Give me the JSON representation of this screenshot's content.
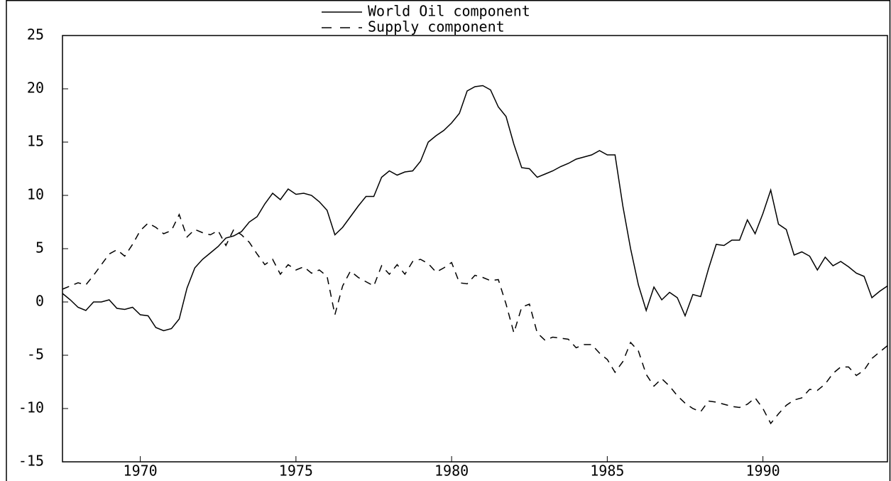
{
  "chart_data": {
    "type": "line",
    "x": [
      1967.5,
      1967.75,
      1968,
      1968.25,
      1968.5,
      1968.75,
      1969,
      1969.25,
      1969.5,
      1969.75,
      1970,
      1970.25,
      1970.5,
      1970.75,
      1971,
      1971.25,
      1971.5,
      1971.75,
      1972,
      1972.25,
      1972.5,
      1972.75,
      1973,
      1973.25,
      1973.5,
      1973.75,
      1974,
      1974.25,
      1974.5,
      1974.75,
      1975,
      1975.25,
      1975.5,
      1975.75,
      1976,
      1976.25,
      1976.5,
      1976.75,
      1977,
      1977.25,
      1977.5,
      1977.75,
      1978,
      1978.25,
      1978.5,
      1978.75,
      1979,
      1979.25,
      1979.5,
      1979.75,
      1980,
      1980.25,
      1980.5,
      1980.75,
      1981,
      1981.25,
      1981.5,
      1981.75,
      1982,
      1982.25,
      1982.5,
      1982.75,
      1983,
      1983.25,
      1983.5,
      1983.75,
      1984,
      1984.25,
      1984.5,
      1984.75,
      1985,
      1985.25,
      1985.5,
      1985.75,
      1986,
      1986.25,
      1986.5,
      1986.75,
      1987,
      1987.25,
      1987.5,
      1987.75,
      1988,
      1988.25,
      1988.5,
      1988.75,
      1989,
      1989.25,
      1989.5,
      1989.75,
      1990,
      1990.25,
      1990.5,
      1990.75,
      1991,
      1991.25,
      1991.5,
      1991.75,
      1992,
      1992.25,
      1992.5,
      1992.75,
      1993,
      1993.25,
      1993.5,
      1993.75,
      1994
    ],
    "series": [
      {
        "name": "World Oil component",
        "color": "#000000",
        "dash": false,
        "values": [
          0.8,
          0.2,
          -0.5,
          -0.8,
          0.0,
          0.0,
          0.2,
          -0.6,
          -0.7,
          -0.5,
          -1.2,
          -1.3,
          -2.4,
          -2.7,
          -2.5,
          -1.6,
          1.3,
          3.2,
          4.0,
          4.6,
          5.2,
          6.0,
          6.2,
          6.6,
          7.5,
          8.0,
          9.2,
          10.2,
          9.6,
          10.6,
          10.1,
          10.2,
          10.0,
          9.4,
          8.6,
          6.3,
          7.0,
          8.0,
          9.0,
          9.9,
          9.9,
          11.7,
          12.3,
          11.9,
          12.2,
          12.3,
          13.2,
          15.0,
          15.6,
          16.1,
          16.8,
          17.7,
          19.8,
          20.2,
          20.3,
          19.9,
          18.3,
          17.4,
          14.8,
          12.6,
          12.5,
          11.7,
          12.0,
          12.3,
          12.7,
          13.0,
          13.4,
          13.6,
          13.8,
          14.2,
          13.8,
          13.8,
          9.0,
          5.0,
          1.6,
          -0.8,
          1.4,
          0.2,
          0.9,
          0.4,
          -1.3,
          0.7,
          0.5,
          3.1,
          5.4,
          5.3,
          5.8,
          5.8,
          7.7,
          6.4,
          8.3,
          10.5,
          7.3,
          6.8,
          4.4,
          4.7,
          4.3,
          3.0,
          4.2,
          3.4,
          3.8,
          3.3,
          2.7,
          2.4,
          0.4,
          1.0,
          1.5
        ]
      },
      {
        "name": "Supply component",
        "color": "#000000",
        "dash": true,
        "values": [
          1.2,
          1.5,
          1.8,
          1.6,
          2.5,
          3.5,
          4.5,
          4.9,
          4.3,
          5.4,
          6.7,
          7.4,
          7.0,
          6.4,
          6.7,
          8.2,
          6.1,
          6.8,
          6.5,
          6.3,
          6.7,
          5.3,
          6.8,
          6.3,
          5.6,
          4.5,
          3.5,
          4.0,
          2.6,
          3.5,
          3.0,
          3.3,
          2.7,
          3.0,
          2.4,
          -1.2,
          1.5,
          2.9,
          2.3,
          1.9,
          1.5,
          3.4,
          2.6,
          3.5,
          2.6,
          3.8,
          4.0,
          3.6,
          2.8,
          3.2,
          3.7,
          1.8,
          1.7,
          2.5,
          2.3,
          2.0,
          2.1,
          -0.2,
          -2.9,
          -0.5,
          -0.2,
          -2.9,
          -3.6,
          -3.3,
          -3.4,
          -3.5,
          -4.3,
          -4.0,
          -4.0,
          -4.8,
          -5.4,
          -6.6,
          -5.6,
          -3.8,
          -4.6,
          -6.8,
          -7.9,
          -7.2,
          -7.9,
          -8.8,
          -9.5,
          -10.0,
          -10.3,
          -9.3,
          -9.4,
          -9.6,
          -9.8,
          -9.9,
          -9.6,
          -9.0,
          -10.0,
          -11.4,
          -10.5,
          -9.7,
          -9.2,
          -9.0,
          -8.2,
          -8.3,
          -7.7,
          -6.7,
          -6.1,
          -6.1,
          -6.9,
          -6.4,
          -5.3,
          -4.7,
          -4.1
        ]
      }
    ],
    "xlim": [
      1967.5,
      1994
    ],
    "xticks": [
      1970,
      1975,
      1980,
      1985,
      1990
    ],
    "ylim": [
      -15,
      25
    ],
    "yticks": [
      -15,
      -10,
      -5,
      0,
      5,
      10,
      15,
      20,
      25
    ],
    "grid": false,
    "legend": "top"
  }
}
